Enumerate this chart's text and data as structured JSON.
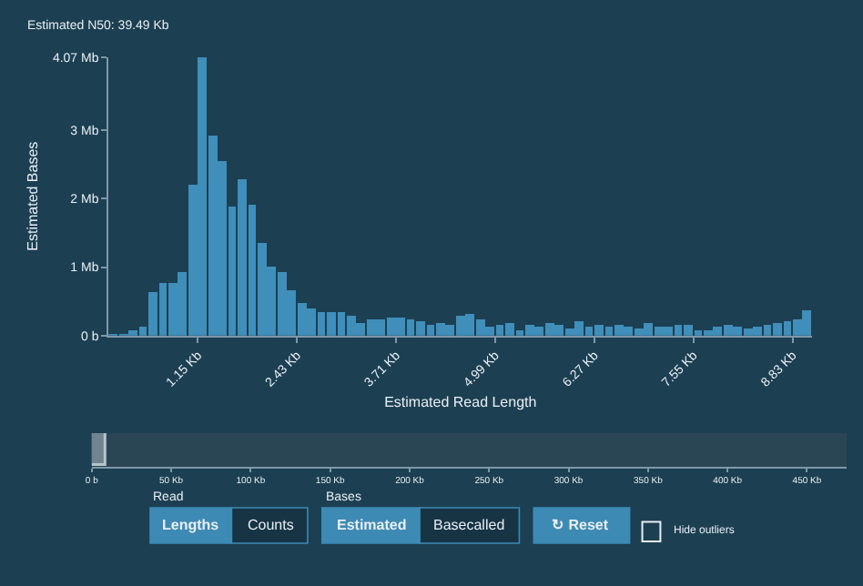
{
  "chart_data": [
    {
      "type": "histogram",
      "title": "Estimated N50: 39.49 Kb",
      "xlabel": "Estimated Read Length",
      "ylabel": "Estimated Bases",
      "color": "#3f8fba",
      "bins": [
        0,
        0.128,
        0.256,
        0.384,
        0.512,
        0.64,
        0.768,
        0.896,
        1.024,
        1.152,
        1.28,
        1.408,
        1.536,
        1.664,
        1.792,
        1.92,
        2.048,
        2.176,
        2.304,
        2.432,
        2.56,
        2.688,
        2.816,
        2.944,
        3.072,
        3.2,
        3.328,
        3.456,
        3.584,
        3.712,
        3.84,
        3.968,
        4.096,
        4.224,
        4.352,
        4.48,
        4.608,
        4.736,
        4.864,
        4.992,
        5.12,
        5.248,
        5.376,
        5.504,
        5.632,
        5.76,
        5.888,
        6.016,
        6.144,
        6.272,
        6.4,
        6.528,
        6.656,
        6.784,
        6.912,
        7.04,
        7.168,
        7.296,
        7.424,
        7.552,
        7.68,
        7.808,
        7.936,
        8.064,
        8.192,
        8.32,
        8.448,
        8.576,
        8.704,
        8.832,
        8.96,
        9.088
      ],
      "values": [
        0.01,
        0.02,
        0.07,
        0.13,
        0.63,
        0.78,
        0.78,
        0.93,
        2.22,
        4.07,
        2.93,
        2.55,
        1.88,
        2.3,
        1.92,
        1.35,
        1.0,
        0.93,
        0.68,
        0.47,
        0.4,
        0.36,
        0.36,
        0.35,
        0.3,
        0.2,
        0.25,
        0.23,
        0.26,
        0.28,
        0.23,
        0.22,
        0.16,
        0.19,
        0.16,
        0.29,
        0.31,
        0.25,
        0.13,
        0.15,
        0.2,
        0.09,
        0.16,
        0.14,
        0.18,
        0.16,
        0.11,
        0.21,
        0.14,
        0.17,
        0.13,
        0.17,
        0.14,
        0.1,
        0.18,
        0.14,
        0.14,
        0.16,
        0.17,
        0.09,
        0.09,
        0.13,
        0.16,
        0.14,
        0.1,
        0.13,
        0.16,
        0.2,
        0.21,
        0.24,
        0.38
      ],
      "xlim": [
        0,
        9.088
      ],
      "xticks": [
        {
          "value": 1.152,
          "label": "1.15 Kb"
        },
        {
          "value": 2.432,
          "label": "2.43 Kb"
        },
        {
          "value": 3.712,
          "label": "3.71 Kb"
        },
        {
          "value": 4.992,
          "label": "4.99 Kb"
        },
        {
          "value": 6.272,
          "label": "6.27 Kb"
        },
        {
          "value": 7.552,
          "label": "7.55 Kb"
        },
        {
          "value": 8.832,
          "label": "8.83 Kb"
        }
      ],
      "ylim": [
        0,
        4.07
      ],
      "yticks": [
        {
          "value": 0,
          "label": "0 b"
        },
        {
          "value": 1,
          "label": "1 Mb"
        },
        {
          "value": 2,
          "label": "2 Mb"
        },
        {
          "value": 3,
          "label": "3 Mb"
        },
        {
          "value": 4.07,
          "label": "4.07 Mb"
        }
      ],
      "grid": false
    },
    {
      "type": "bar",
      "orientation": "horizontal",
      "categories": [
        null
      ],
      "values": [
        9
      ],
      "color": "#8a9aa3",
      "tick_labels": "x",
      "xlim": [
        0,
        475
      ],
      "xticks": [
        {
          "value": 0,
          "label": "0 b"
        },
        {
          "value": 50,
          "label": "50 Kb"
        },
        {
          "value": 100,
          "label": "100 Kb"
        },
        {
          "value": 150,
          "label": "150 Kb"
        },
        {
          "value": 200,
          "label": "200 Kb"
        },
        {
          "value": 250,
          "label": "250 Kb"
        },
        {
          "value": 300,
          "label": "300 Kb"
        },
        {
          "value": 350,
          "label": "350 Kb"
        },
        {
          "value": 400,
          "label": "400 Kb"
        },
        {
          "value": 450,
          "label": "450 Kb"
        }
      ],
      "annotations": [
        "Read",
        "Lengths",
        "Counts",
        "Bases",
        "Estimated",
        "Basecalled",
        "↻ Reset",
        "Hide outliers"
      ]
    }
  ]
}
